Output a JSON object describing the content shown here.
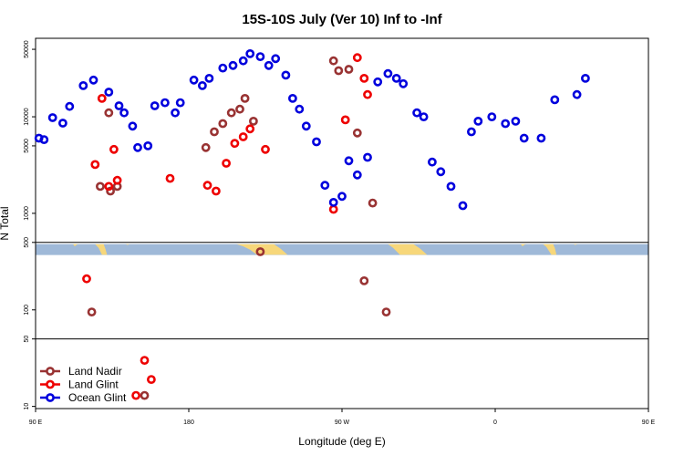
{
  "chart_data": {
    "type": "scatter",
    "title": "15S-10S July (Ver 10)   Inf to -Inf",
    "xlabel": "Longitude (deg E)",
    "ylabel": "N Total",
    "x_scale": "linear",
    "y_scale": "log",
    "xlim": [
      90,
      450
    ],
    "ylim": [
      9.5,
      65000
    ],
    "x_ticks": [
      {
        "value": 90,
        "label": "90 E"
      },
      {
        "value": 180,
        "label": "180"
      },
      {
        "value": 270,
        "label": "90 W"
      },
      {
        "value": 360,
        "label": "0"
      },
      {
        "value": 450,
        "label": "90 E"
      },
      {
        "value": 540,
        "label": "180"
      }
    ],
    "y_ticks": [
      {
        "value": 10,
        "label": "10"
      },
      {
        "value": 50,
        "label": "50"
      },
      {
        "value": 100,
        "label": "100"
      },
      {
        "value": 500,
        "label": "500"
      },
      {
        "value": 1000,
        "label": "1000"
      },
      {
        "value": 5000,
        "label": "5000"
      },
      {
        "value": 10000,
        "label": "10000"
      },
      {
        "value": 50000,
        "label": "50000"
      }
    ],
    "h_lines": [
      50,
      500
    ],
    "map_band": {
      "y_top": 480,
      "y_bottom": 370,
      "ocean_color": "#9fb9d8",
      "land_color": "#f7d77a"
    },
    "legend_position": "bottom-left",
    "series": [
      {
        "name": "Land Nadir",
        "color": "#993333",
        "x": [
          123,
          128,
          133,
          134,
          138,
          154,
          190,
          195,
          200,
          205,
          210,
          213,
          218,
          222,
          265,
          268,
          274,
          279,
          283,
          288,
          296
        ],
        "y": [
          95,
          1900,
          11000,
          1700,
          1900,
          13,
          4800,
          7000,
          8500,
          11000,
          12000,
          15500,
          9000,
          400,
          38000,
          30000,
          31000,
          6800,
          200,
          1280,
          95
        ],
        "x_offset": 0
      },
      {
        "name": "Land Glint",
        "color": "#ee0000",
        "x": [
          120,
          125,
          129,
          133,
          136,
          138,
          149,
          154,
          158,
          169,
          191,
          196,
          202,
          207,
          212,
          216,
          225,
          265,
          272,
          279,
          283,
          285
        ],
        "y": [
          210,
          3200,
          15500,
          1900,
          4600,
          2200,
          13,
          30,
          19,
          2300,
          1950,
          1700,
          3300,
          5300,
          6200,
          7500,
          4600,
          1100,
          9300,
          41000,
          25000,
          17000
        ],
        "x_offset": 0
      },
      {
        "name": "Ocean Glint",
        "color": "#0000dd",
        "x": [
          92,
          95,
          100,
          106,
          110,
          118,
          124,
          133,
          139,
          142,
          147,
          150,
          156,
          160,
          166,
          172,
          175,
          183,
          188,
          192,
          200,
          206,
          212,
          216,
          222,
          227,
          231,
          237,
          241,
          245,
          249,
          255,
          260,
          265,
          270,
          274,
          279,
          285,
          291,
          297,
          302,
          306,
          314,
          318,
          323,
          328,
          334,
          341,
          346,
          350,
          358,
          366,
          372,
          377,
          387,
          395,
          408,
          413
        ],
        "y": [
          6000,
          5800,
          9800,
          8600,
          12800,
          21000,
          24000,
          18000,
          13000,
          11000,
          8000,
          4800,
          5000,
          13000,
          14000,
          11000,
          14000,
          24000,
          21000,
          25000,
          32000,
          34000,
          38000,
          45000,
          42000,
          34000,
          40000,
          27000,
          15500,
          12000,
          8000,
          5500,
          1950,
          1300,
          1500,
          3500,
          2500,
          3800,
          23000,
          28000,
          25000,
          22000,
          11000,
          10000,
          3400,
          2700,
          1900,
          1200,
          7000,
          9000,
          10000,
          8500,
          9000,
          6000,
          6000,
          15000,
          17000,
          25000
        ],
        "x_offset": 0
      }
    ]
  }
}
